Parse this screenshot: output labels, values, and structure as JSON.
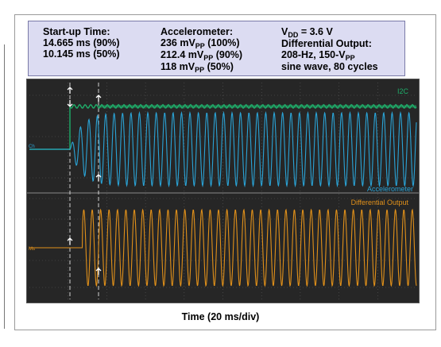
{
  "info": {
    "col1": [
      "Start-up Time:",
      "14.665 ms (90%)",
      "10.145 ms (50%)"
    ],
    "col2": {
      "heading": "Accelerometer:",
      "rows": [
        {
          "pre": "236 mV",
          "sub": "PP",
          "post": " (100%)"
        },
        {
          "pre": "212.4 mV",
          "sub": "PP",
          "post": " (90%)"
        },
        {
          "pre": "118 mV",
          "sub": "PP",
          "post": " (50%)"
        }
      ]
    },
    "col3": {
      "vdd": {
        "pre": "V",
        "sub": "DD",
        "post": " = 3.6 V"
      },
      "heading": "Differential Output:",
      "freq": {
        "pre": "208-Hz, 150-V",
        "sub": "PP",
        "post": ""
      },
      "tail": "sine wave, 80 cycles"
    }
  },
  "caption": "Time (20 ms/div)",
  "chart_data": {
    "type": "line",
    "title": "",
    "xlabel": "Time (20 ms/div)",
    "ylabel": "",
    "x_divisions": 10,
    "grid": true,
    "series": [
      {
        "name": "I2C",
        "color": "#1fae6a",
        "shape": "step high at 14.665 ms with small ripple"
      },
      {
        "name": "Accelerometer",
        "color": "#2aa3d6",
        "startup_ms": {
          "p90": 14.665,
          "p50": 10.145
        },
        "amplitude_mVpp": 236,
        "frequency_hz": 208
      },
      {
        "name": "Differential Output",
        "color": "#e0901a",
        "amplitude_Vpp": 150,
        "frequency_hz": 208,
        "cycles": 80
      }
    ],
    "markers": {
      "trigger_dashed": "dashed vertical at start",
      "startup_dashed": "dashed vertical at ~14.665 ms"
    },
    "ch_tags": {
      "accel": "Ch",
      "diff": "Ms"
    }
  }
}
